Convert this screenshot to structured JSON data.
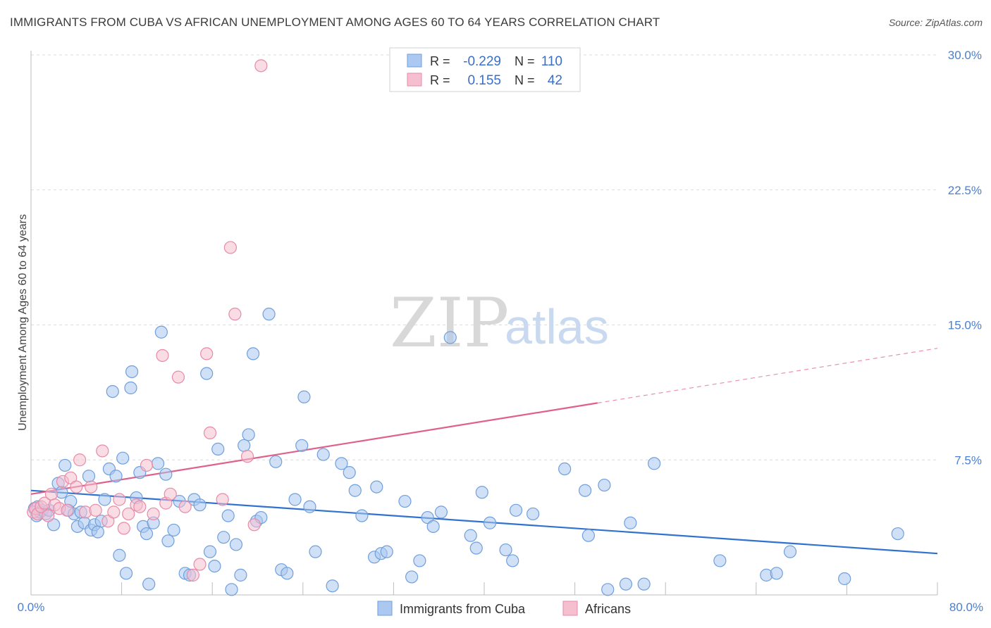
{
  "header": {
    "title": "IMMIGRANTS FROM CUBA VS AFRICAN UNEMPLOYMENT AMONG AGES 60 TO 64 YEARS CORRELATION CHART",
    "source": "Source: ZipAtlas.com"
  },
  "watermark": {
    "zip": "ZIP",
    "atlas": "atlas"
  },
  "legend": {
    "rows": [
      {
        "r_label": "R =",
        "r_value": "-0.229",
        "n_label": "N =",
        "n_value": "110"
      },
      {
        "r_label": "R =",
        "r_value": "0.155",
        "n_label": "N =",
        "n_value": "42"
      }
    ]
  },
  "bottom_legend": {
    "items": [
      {
        "label": "Immigrants from Cuba"
      },
      {
        "label": "Africans"
      }
    ]
  },
  "colors": {
    "blue_fill": "#aac8f0",
    "blue_stroke": "#6f9fdc",
    "blue_line": "#2f72d0",
    "pink_fill": "#f5bfd0",
    "pink_stroke": "#e88aa8",
    "pink_line": "#e0608c",
    "grid": "#dcdcdc",
    "tick": "#4a7fd1"
  },
  "chart_data": {
    "type": "scatter",
    "title": "IMMIGRANTS FROM CUBA VS AFRICAN UNEMPLOYMENT AMONG AGES 60 TO 64 YEARS CORRELATION CHART",
    "xlabel": "",
    "ylabel": "Unemployment Among Ages 60 to 64 years",
    "xlim": [
      0,
      80
    ],
    "ylim": [
      0,
      30
    ],
    "x_tick_labels": [
      "0.0%",
      "80.0%"
    ],
    "y_ticks": [
      7.5,
      15.0,
      22.5,
      30.0
    ],
    "y_tick_labels": [
      "7.5%",
      "15.0%",
      "22.5%",
      "30.0%"
    ],
    "grid": true,
    "series": [
      {
        "name": "Immigrants from Cuba",
        "color": "#aac8f0",
        "r": -0.229,
        "n": 110,
        "trend": {
          "x": [
            0,
            80
          ],
          "y": [
            5.8,
            2.3
          ],
          "dashed_from": null
        },
        "points": [
          [
            0.3,
            4.8
          ],
          [
            0.5,
            4.4
          ],
          [
            0.6,
            4.9
          ],
          [
            0.8,
            4.6
          ],
          [
            1.0,
            4.7
          ],
          [
            1.3,
            4.5
          ],
          [
            1.6,
            4.7
          ],
          [
            2.0,
            3.9
          ],
          [
            2.4,
            6.2
          ],
          [
            2.7,
            5.7
          ],
          [
            3.0,
            7.2
          ],
          [
            3.3,
            4.7
          ],
          [
            3.5,
            5.2
          ],
          [
            3.8,
            4.5
          ],
          [
            4.1,
            3.8
          ],
          [
            4.4,
            4.6
          ],
          [
            4.7,
            4.0
          ],
          [
            5.1,
            6.6
          ],
          [
            5.3,
            3.6
          ],
          [
            5.6,
            3.9
          ],
          [
            5.9,
            3.5
          ],
          [
            6.2,
            4.1
          ],
          [
            6.5,
            5.3
          ],
          [
            6.9,
            7.0
          ],
          [
            7.2,
            11.3
          ],
          [
            7.5,
            6.6
          ],
          [
            7.8,
            2.2
          ],
          [
            8.1,
            7.6
          ],
          [
            8.4,
            1.2
          ],
          [
            8.8,
            11.5
          ],
          [
            8.9,
            12.4
          ],
          [
            9.3,
            5.4
          ],
          [
            9.6,
            6.8
          ],
          [
            9.9,
            3.8
          ],
          [
            10.2,
            3.4
          ],
          [
            10.4,
            0.6
          ],
          [
            10.8,
            4.0
          ],
          [
            11.2,
            7.3
          ],
          [
            11.5,
            14.6
          ],
          [
            11.9,
            6.7
          ],
          [
            12.1,
            3.0
          ],
          [
            12.6,
            3.6
          ],
          [
            13.1,
            5.2
          ],
          [
            13.6,
            1.2
          ],
          [
            14.0,
            1.1
          ],
          [
            14.4,
            5.3
          ],
          [
            14.9,
            5.0
          ],
          [
            15.5,
            12.3
          ],
          [
            15.8,
            2.4
          ],
          [
            16.2,
            1.6
          ],
          [
            16.5,
            8.1
          ],
          [
            17.0,
            3.2
          ],
          [
            17.4,
            4.4
          ],
          [
            17.7,
            0.3
          ],
          [
            18.1,
            2.8
          ],
          [
            18.5,
            1.1
          ],
          [
            18.8,
            8.3
          ],
          [
            19.2,
            8.9
          ],
          [
            19.6,
            13.4
          ],
          [
            19.9,
            4.1
          ],
          [
            20.3,
            4.3
          ],
          [
            21.0,
            15.6
          ],
          [
            21.6,
            7.4
          ],
          [
            22.1,
            1.4
          ],
          [
            22.6,
            1.2
          ],
          [
            23.3,
            5.3
          ],
          [
            23.9,
            8.3
          ],
          [
            24.1,
            11.0
          ],
          [
            24.6,
            4.9
          ],
          [
            25.1,
            2.4
          ],
          [
            25.8,
            7.8
          ],
          [
            26.6,
            0.5
          ],
          [
            27.4,
            7.3
          ],
          [
            28.1,
            6.8
          ],
          [
            28.6,
            5.8
          ],
          [
            29.2,
            4.4
          ],
          [
            30.3,
            2.1
          ],
          [
            30.5,
            6.0
          ],
          [
            30.9,
            2.3
          ],
          [
            31.4,
            2.4
          ],
          [
            33.0,
            5.2
          ],
          [
            33.6,
            1.0
          ],
          [
            34.3,
            1.9
          ],
          [
            35.0,
            4.3
          ],
          [
            35.5,
            3.8
          ],
          [
            36.2,
            4.6
          ],
          [
            37.0,
            14.3
          ],
          [
            38.8,
            3.3
          ],
          [
            39.3,
            2.6
          ],
          [
            39.8,
            5.7
          ],
          [
            40.5,
            4.0
          ],
          [
            41.9,
            2.5
          ],
          [
            42.5,
            1.9
          ],
          [
            42.8,
            4.7
          ],
          [
            44.3,
            4.5
          ],
          [
            47.1,
            7.0
          ],
          [
            48.9,
            5.8
          ],
          [
            49.2,
            3.3
          ],
          [
            50.6,
            6.1
          ],
          [
            50.9,
            0.3
          ],
          [
            52.5,
            0.6
          ],
          [
            52.9,
            4.0
          ],
          [
            54.1,
            0.6
          ],
          [
            55.0,
            7.3
          ],
          [
            60.8,
            1.9
          ],
          [
            64.9,
            1.1
          ],
          [
            65.8,
            1.2
          ],
          [
            67.0,
            2.4
          ],
          [
            71.8,
            0.9
          ],
          [
            76.5,
            3.4
          ]
        ]
      },
      {
        "name": "Africans",
        "color": "#f5bfd0",
        "r": 0.155,
        "n": 42,
        "trend": {
          "x": [
            0,
            80
          ],
          "y": [
            5.6,
            13.7
          ],
          "dashed_from": 50
        },
        "points": [
          [
            0.2,
            4.6
          ],
          [
            0.4,
            4.8
          ],
          [
            0.6,
            4.5
          ],
          [
            0.9,
            4.9
          ],
          [
            1.2,
            5.1
          ],
          [
            1.5,
            4.4
          ],
          [
            1.8,
            5.6
          ],
          [
            2.1,
            5.0
          ],
          [
            2.5,
            4.8
          ],
          [
            2.8,
            6.3
          ],
          [
            3.2,
            4.7
          ],
          [
            3.5,
            6.5
          ],
          [
            4.0,
            6.0
          ],
          [
            4.3,
            7.5
          ],
          [
            4.8,
            4.6
          ],
          [
            5.3,
            6.0
          ],
          [
            5.7,
            4.7
          ],
          [
            6.3,
            8.0
          ],
          [
            6.8,
            4.1
          ],
          [
            7.3,
            4.6
          ],
          [
            7.8,
            5.3
          ],
          [
            8.2,
            3.7
          ],
          [
            8.6,
            4.5
          ],
          [
            9.3,
            5.0
          ],
          [
            9.6,
            4.9
          ],
          [
            10.2,
            7.2
          ],
          [
            10.8,
            4.5
          ],
          [
            11.6,
            13.3
          ],
          [
            11.9,
            5.1
          ],
          [
            12.3,
            5.6
          ],
          [
            13.0,
            12.1
          ],
          [
            13.6,
            4.9
          ],
          [
            14.3,
            1.1
          ],
          [
            14.9,
            1.7
          ],
          [
            15.5,
            13.4
          ],
          [
            15.8,
            9.0
          ],
          [
            16.9,
            5.3
          ],
          [
            17.6,
            19.3
          ],
          [
            18.0,
            15.6
          ],
          [
            19.1,
            7.7
          ],
          [
            19.7,
            3.9
          ],
          [
            20.3,
            29.4
          ]
        ]
      }
    ]
  }
}
